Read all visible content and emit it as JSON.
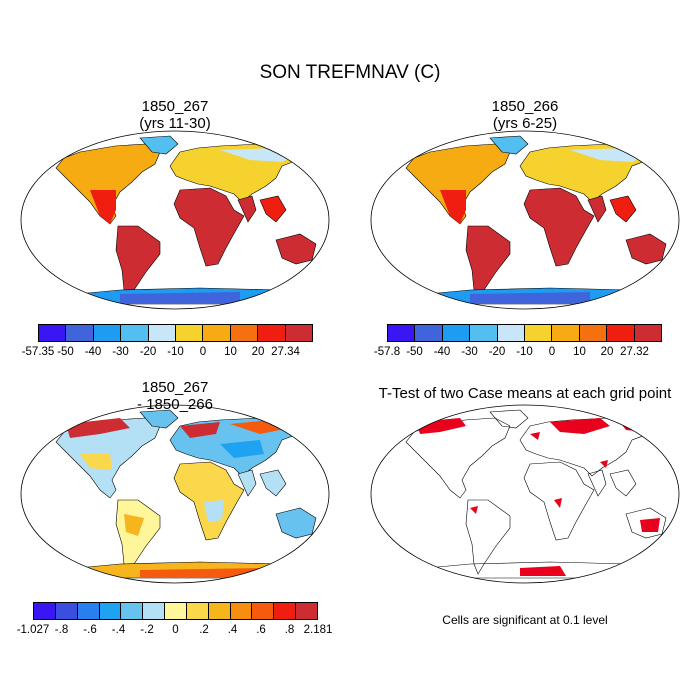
{
  "title": "SON TREFMNAV (C)",
  "panels": [
    {
      "title_line1": "1850_267",
      "title_line2": "(yrs 11-30)",
      "kind": "abs"
    },
    {
      "title_line1": "1850_266",
      "title_line2": "(yrs 6-25)",
      "kind": "abs"
    },
    {
      "title_line1": "1850_267",
      "title_line2": "- 1850_266",
      "kind": "diff"
    },
    {
      "title_line1": "T-Test of two Case means at each grid point",
      "title_line2": "",
      "kind": "ttest"
    }
  ],
  "colorbars": [
    {
      "colors": [
        "#3b16f5",
        "#3f64db",
        "#1e9cf2",
        "#53bff0",
        "#c7e6f7",
        "#f6d22e",
        "#f7ab12",
        "#f5700f",
        "#ef1e10",
        "#cd2d32"
      ],
      "labels": [
        "-57.35",
        "-50",
        "-40",
        "-30",
        "-20",
        "-10",
        "0",
        "10",
        "20",
        "27.34"
      ]
    },
    {
      "colors": [
        "#3b16f5",
        "#3f64db",
        "#1e9cf2",
        "#53bff0",
        "#c7e6f7",
        "#f6d22e",
        "#f7ab12",
        "#f5700f",
        "#ef1e10",
        "#cd2d32"
      ],
      "labels": [
        "-57.8",
        "-50",
        "-40",
        "-30",
        "-20",
        "-10",
        "0",
        "10",
        "20",
        "27.32"
      ]
    },
    {
      "colors": [
        "#3b16f5",
        "#3a4fe0",
        "#2a7ff0",
        "#1ea3f2",
        "#68c2ef",
        "#b3e0f5",
        "#fff59a",
        "#fbd74b",
        "#f7b51d",
        "#f78e12",
        "#f55a0f",
        "#ef1e10",
        "#cd2d32"
      ],
      "labels": [
        "-1.027",
        "-.8",
        "-.6",
        "-.4",
        "-.2",
        "0",
        ".2",
        ".4",
        ".6",
        ".8",
        "2.181"
      ]
    }
  ],
  "note": "Cells are significant at 0.1 level"
}
